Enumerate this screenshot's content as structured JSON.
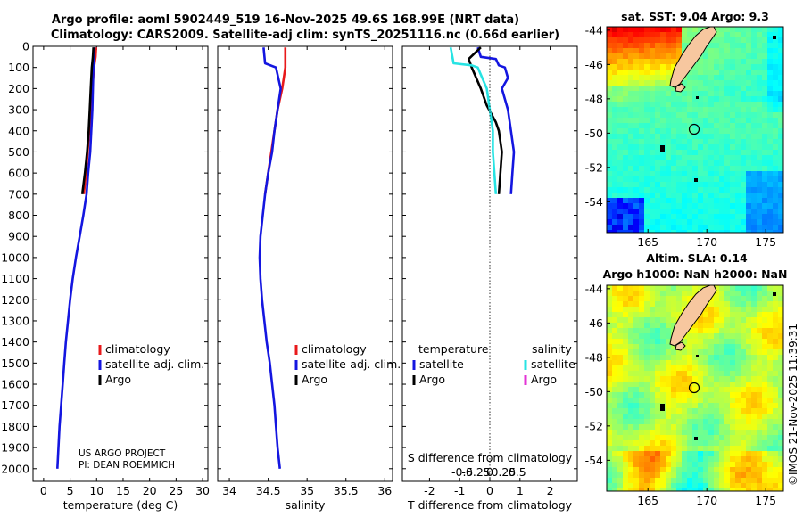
{
  "header": {
    "title_line1": "Argo profile: aoml 5902449_519 16-Nov-2025 49.6S 168.99E (NRT data)",
    "title_line2": "Climatology: CARS2009. Satellite-adj clim: synTS_20251116.nc (0.66d earlier)",
    "credit_line1": "US ARGO PROJECT",
    "credit_line2": "PI: DEAN ROEMMICH",
    "timestamp": "©IMOS 21-Nov-2025 11:39:31"
  },
  "colors": {
    "climatology": "#e8191b",
    "satellite_adj": "#1416e0",
    "argo": "#000000",
    "satellite_s": "#27e3e3",
    "argo_s": "#e334d6"
  },
  "chart_data": [
    {
      "id": "temperature",
      "type": "line",
      "xlabel": "temperature (deg C)",
      "ylabel": "",
      "xlim": [
        -2,
        31
      ],
      "ylim": [
        2060,
        0
      ],
      "xticks": [
        0,
        5,
        10,
        15,
        20,
        25,
        30
      ],
      "yticks": [
        0,
        100,
        200,
        300,
        400,
        500,
        600,
        700,
        800,
        900,
        1000,
        1100,
        1200,
        1300,
        1400,
        1500,
        1600,
        1700,
        1800,
        1900,
        2000
      ],
      "legend": [
        "climatology",
        "satellite-adj. clim.",
        "Argo"
      ],
      "series": [
        {
          "name": "climatology",
          "color": "#e8191b",
          "points": [
            [
              9.9,
              5
            ],
            [
              9.8,
              50
            ],
            [
              9.5,
              100
            ],
            [
              9.2,
              200
            ],
            [
              8.9,
              300
            ],
            [
              8.6,
              400
            ],
            [
              8.3,
              500
            ],
            [
              8.0,
              600
            ],
            [
              7.6,
              700
            ]
          ]
        },
        {
          "name": "satellite-adj. clim.",
          "color": "#1416e0",
          "points": [
            [
              9.6,
              5
            ],
            [
              9.5,
              50
            ],
            [
              9.4,
              100
            ],
            [
              9.3,
              200
            ],
            [
              9.2,
              300
            ],
            [
              9.0,
              400
            ],
            [
              8.8,
              500
            ],
            [
              8.4,
              600
            ],
            [
              8.1,
              700
            ],
            [
              7.5,
              800
            ],
            [
              6.8,
              900
            ],
            [
              6.1,
              1000
            ],
            [
              5.5,
              1100
            ],
            [
              5.0,
              1200
            ],
            [
              4.6,
              1300
            ],
            [
              4.2,
              1400
            ],
            [
              3.9,
              1500
            ],
            [
              3.6,
              1600
            ],
            [
              3.3,
              1700
            ],
            [
              3.0,
              1800
            ],
            [
              2.8,
              1900
            ],
            [
              2.6,
              2000
            ]
          ]
        },
        {
          "name": "Argo",
          "color": "#000000",
          "points": [
            [
              9.4,
              5
            ],
            [
              9.3,
              50
            ],
            [
              9.1,
              100
            ],
            [
              8.9,
              200
            ],
            [
              8.7,
              300
            ],
            [
              8.5,
              400
            ],
            [
              8.2,
              500
            ],
            [
              7.8,
              600
            ],
            [
              7.3,
              700
            ]
          ]
        }
      ]
    },
    {
      "id": "salinity",
      "type": "line",
      "xlabel": "salinity",
      "ylabel": "",
      "xlim": [
        33.85,
        36.1
      ],
      "ylim": [
        2060,
        0
      ],
      "xticks": [
        34,
        34.5,
        35,
        35.5,
        36
      ],
      "xtick_labels": [
        "34",
        "34.5",
        "35",
        "35.5",
        "36"
      ],
      "legend": [
        "climatology",
        "satellite-adj. clim.",
        "Argo"
      ],
      "series": [
        {
          "name": "climatology",
          "color": "#e8191b",
          "points": [
            [
              34.72,
              5
            ],
            [
              34.72,
              100
            ],
            [
              34.68,
              200
            ],
            [
              34.62,
              300
            ],
            [
              34.58,
              400
            ],
            [
              34.54,
              500
            ],
            [
              34.5,
              600
            ],
            [
              34.46,
              700
            ]
          ]
        },
        {
          "name": "satellite-adj. clim.",
          "color": "#1416e0",
          "points": [
            [
              34.44,
              5
            ],
            [
              34.46,
              80
            ],
            [
              34.6,
              100
            ],
            [
              34.66,
              200
            ],
            [
              34.62,
              300
            ],
            [
              34.58,
              400
            ],
            [
              34.55,
              500
            ],
            [
              34.5,
              600
            ],
            [
              34.46,
              700
            ],
            [
              34.43,
              800
            ],
            [
              34.4,
              900
            ],
            [
              34.39,
              1000
            ],
            [
              34.4,
              1100
            ],
            [
              34.42,
              1200
            ],
            [
              34.45,
              1300
            ],
            [
              34.48,
              1400
            ],
            [
              34.52,
              1500
            ],
            [
              34.55,
              1600
            ],
            [
              34.58,
              1700
            ],
            [
              34.6,
              1800
            ],
            [
              34.62,
              1900
            ],
            [
              34.65,
              2000
            ]
          ]
        },
        {
          "name": "Argo",
          "color": "#000000",
          "points": []
        }
      ]
    },
    {
      "id": "differences",
      "type": "line",
      "xlabel": "T difference from climatology",
      "xlabel_top": "S difference from climatology",
      "ylabel": "",
      "xlim": [
        -2.9,
        2.9
      ],
      "ylim": [
        2060,
        0
      ],
      "xticks": [
        -2,
        -1,
        0,
        1,
        2
      ],
      "xtick_labels": [
        "-2",
        "-1",
        "0",
        "1",
        "2"
      ],
      "sticks": [
        -0.5,
        -0.25,
        0,
        0.25,
        0.5
      ],
      "stick_labels": [
        "-0.5",
        "-0.25",
        "0",
        "0.25",
        "0.5"
      ],
      "legend_headers": [
        "temperature",
        "salinity"
      ],
      "legend_left": [
        "satellite",
        "Argo"
      ],
      "legend_right": [
        "satellite",
        "Argo"
      ],
      "series": [
        {
          "name": "T satellite",
          "color": "#1416e0",
          "points": [
            [
              -0.4,
              5
            ],
            [
              -0.3,
              50
            ],
            [
              0.2,
              60
            ],
            [
              0.3,
              90
            ],
            [
              0.5,
              100
            ],
            [
              0.6,
              150
            ],
            [
              0.4,
              200
            ],
            [
              0.6,
              300
            ],
            [
              0.7,
              400
            ],
            [
              0.8,
              500
            ],
            [
              0.75,
              600
            ],
            [
              0.7,
              700
            ]
          ]
        },
        {
          "name": "T Argo",
          "color": "#000000",
          "points": [
            [
              -0.3,
              5
            ],
            [
              -0.7,
              60
            ],
            [
              -0.6,
              100
            ],
            [
              -0.3,
              200
            ],
            [
              -0.1,
              280
            ],
            [
              0.2,
              360
            ],
            [
              0.3,
              400
            ],
            [
              0.4,
              500
            ],
            [
              0.35,
              600
            ],
            [
              0.3,
              700
            ]
          ]
        },
        {
          "name": "S satellite",
          "color": "#27e3e3",
          "points": [
            [
              -1.3,
              5
            ],
            [
              -1.2,
              80
            ],
            [
              -0.6,
              90
            ],
            [
              -0.4,
              100
            ],
            [
              -0.1,
              200
            ],
            [
              0.0,
              300
            ],
            [
              0.1,
              400
            ],
            [
              0.1,
              500
            ],
            [
              0.15,
              600
            ],
            [
              0.2,
              700
            ]
          ]
        },
        {
          "name": "S Argo",
          "color": "#e334d6",
          "points": []
        }
      ]
    },
    {
      "id": "sst_map",
      "type": "heatmap",
      "title": "sat. SST: 9.04 Argo: 9.3",
      "xlim": [
        161.5,
        176.5
      ],
      "ylim": [
        -55.8,
        -43.8
      ],
      "xticks": [
        165,
        170,
        175
      ],
      "yticks": [
        -44,
        -46,
        -48,
        -50,
        -52,
        -54
      ],
      "float_position": [
        168.99,
        -49.6
      ]
    },
    {
      "id": "sla_map",
      "type": "heatmap",
      "title": "Altim. SLA: 0.14",
      "subtitle": "Argo h1000: NaN h2000: NaN",
      "xlim": [
        161.5,
        176.5
      ],
      "ylim": [
        -55.8,
        -43.8
      ],
      "xticks": [
        165,
        170,
        175
      ],
      "yticks": [
        -44,
        -46,
        -48,
        -50,
        -52,
        -54
      ],
      "float_position": [
        168.99,
        -49.6
      ]
    }
  ]
}
